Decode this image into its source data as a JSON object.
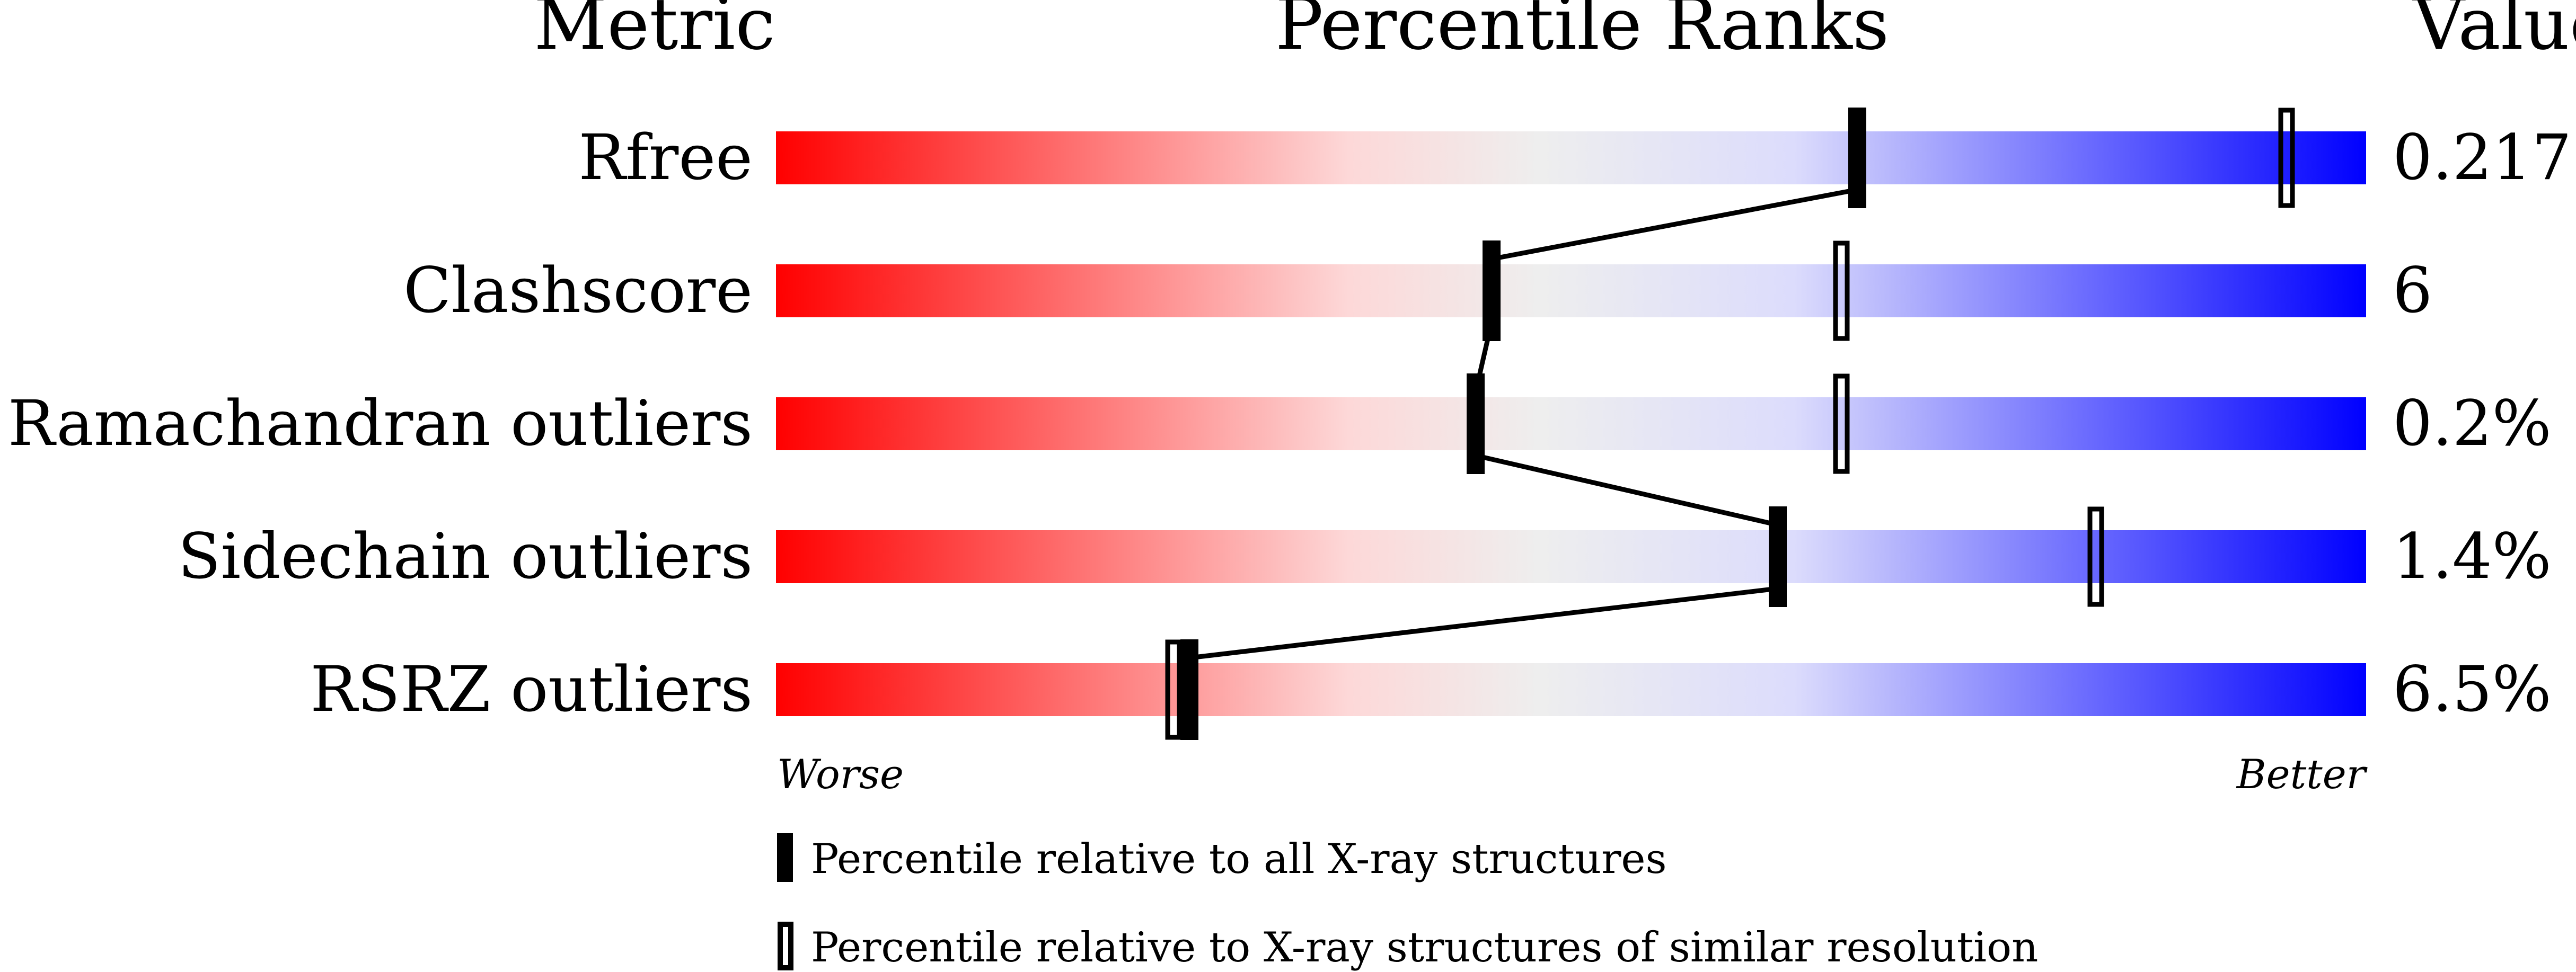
{
  "chart_data": {
    "type": "percentile-slider",
    "headers": {
      "metric": "Metric",
      "ranks": "Percentile Ranks",
      "value": "Value"
    },
    "xlim": [
      0,
      100
    ],
    "axis_labels": {
      "left": "Worse",
      "right": "Better"
    },
    "gradient_colors": [
      "#ff0000",
      "#fdd8d8",
      "#eeeeee",
      "#dcdcfc",
      "#0000ff"
    ],
    "rows": [
      {
        "metric": "Rfree",
        "value": "0.217",
        "percentile_all": 68,
        "percentile_similar": 95
      },
      {
        "metric": "Clashscore",
        "value": "6",
        "percentile_all": 45,
        "percentile_similar": 67
      },
      {
        "metric": "Ramachandran outliers",
        "value": "0.2%",
        "percentile_all": 44,
        "percentile_similar": 67
      },
      {
        "metric": "Sidechain outliers",
        "value": "1.4%",
        "percentile_all": 63,
        "percentile_similar": 83
      },
      {
        "metric": "RSRZ outliers",
        "value": "6.5%",
        "percentile_all": 26,
        "percentile_similar": 25
      }
    ],
    "legend": [
      {
        "marker": "filled",
        "label": "Percentile relative to all X-ray structures"
      },
      {
        "marker": "open",
        "label": "Percentile relative to X-ray structures of similar resolution"
      }
    ]
  }
}
